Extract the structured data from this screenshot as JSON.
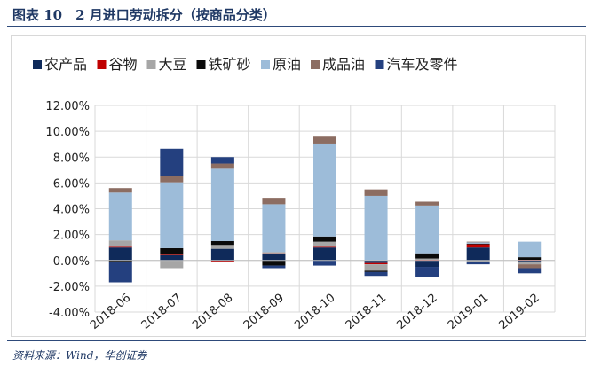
{
  "header": {
    "title": "图表 10　2 月进口劳动拆分（按商品分类）"
  },
  "source": "资料来源：Wind，华创证券",
  "chart_data": {
    "type": "bar",
    "stacked": true,
    "categories": [
      "2018-06",
      "2018-07",
      "2018-08",
      "2018-09",
      "2018-10",
      "2018-11",
      "2018-12",
      "2019-01",
      "2019-02"
    ],
    "ylim": [
      -4,
      12
    ],
    "yticks": [
      -4,
      -2,
      0,
      2,
      4,
      6,
      8,
      10,
      12
    ],
    "ytick_labels": [
      "-4.00%",
      "-2.00%",
      "0.00%",
      "2.00%",
      "4.00%",
      "6.00%",
      "8.00%",
      "10.00%",
      "12.00%"
    ],
    "grid": true,
    "legend_position": "top",
    "series": [
      {
        "name": "农产品",
        "color": "#0f2a5a",
        "values": [
          1.0,
          0.4,
          0.9,
          0.5,
          1.0,
          -0.2,
          -0.5,
          1.0,
          -0.1
        ]
      },
      {
        "name": "谷物",
        "color": "#c00000",
        "values": [
          0.05,
          0.05,
          -0.15,
          0.05,
          0.05,
          -0.1,
          0.05,
          0.25,
          0.05
        ]
      },
      {
        "name": "大豆",
        "color": "#a6a6a6",
        "values": [
          0.5,
          -0.6,
          0.3,
          0.1,
          0.4,
          -0.5,
          0.1,
          -0.1,
          -0.2
        ]
      },
      {
        "name": "铁矿砂",
        "color": "#0a0a0a",
        "values": [
          -0.1,
          0.5,
          0.3,
          -0.4,
          0.4,
          -0.1,
          0.4,
          0.05,
          0.2
        ]
      },
      {
        "name": "原油",
        "color": "#9dbcd9",
        "values": [
          3.7,
          5.1,
          5.6,
          3.7,
          7.2,
          5.0,
          3.7,
          0.1,
          1.2
        ]
      },
      {
        "name": "成品油",
        "color": "#8c6d62",
        "values": [
          0.35,
          0.5,
          0.4,
          0.5,
          0.6,
          0.5,
          0.3,
          0.05,
          -0.3
        ]
      },
      {
        "name": "汽车及零件",
        "color": "#24407f",
        "values": [
          -1.6,
          2.1,
          0.5,
          -0.2,
          -0.4,
          -0.3,
          -0.8,
          -0.2,
          -0.4
        ]
      }
    ]
  }
}
